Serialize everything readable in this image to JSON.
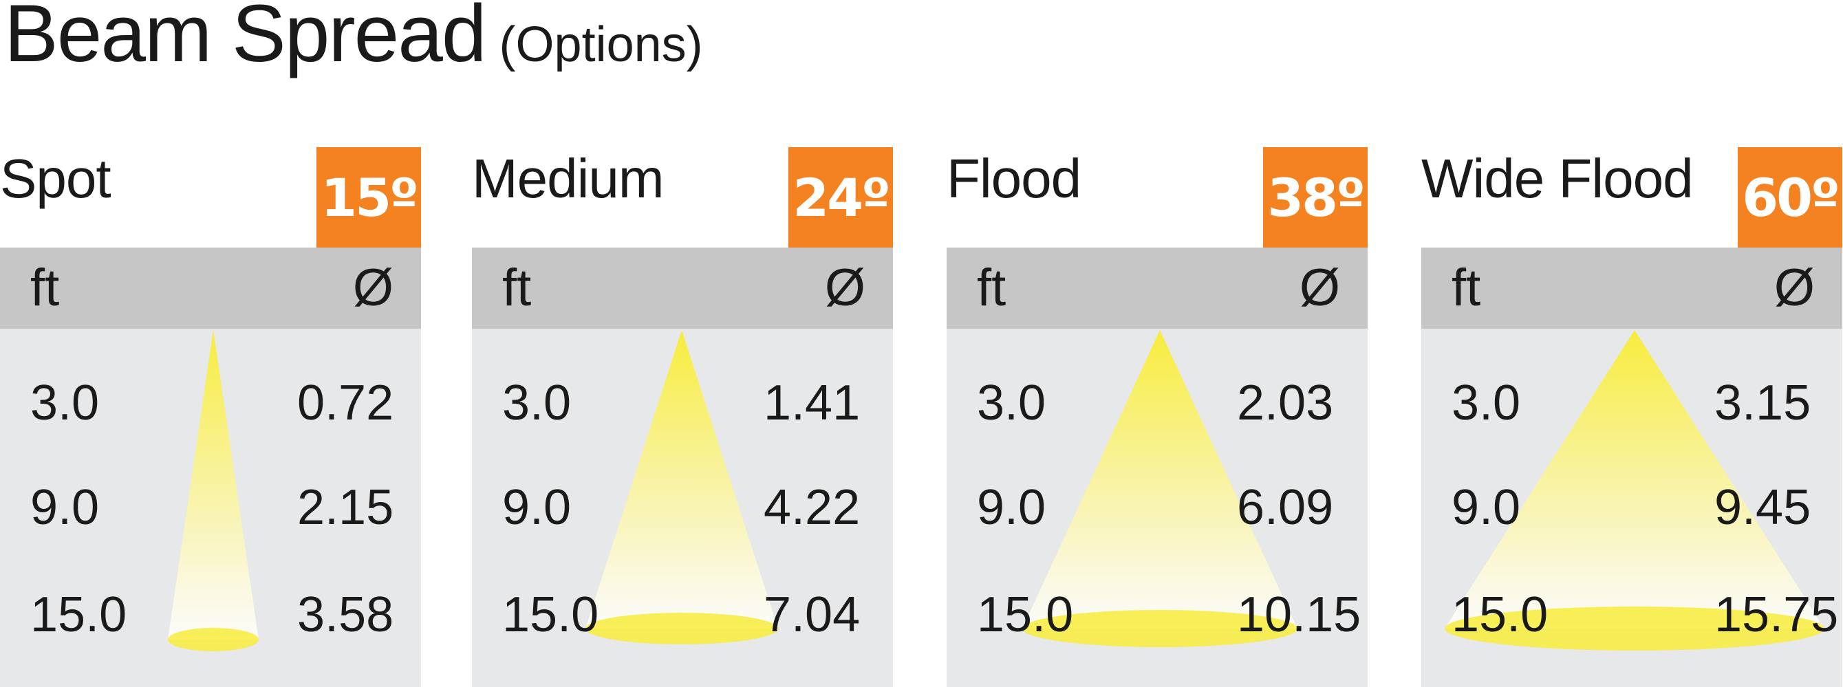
{
  "title": {
    "main": "Beam Spread",
    "sub": "(Options)"
  },
  "colors": {
    "accent": "#f58220",
    "header": "#c6c6c6",
    "body": "#e7e8e9",
    "beam": "#f7ec3c"
  },
  "columns": {
    "distance": "ft",
    "diameter": "Ø"
  },
  "panels": [
    {
      "name": "Spot",
      "angle": "15º",
      "degrees": 15,
      "rows": [
        {
          "ft": "3.0",
          "dia": "0.72"
        },
        {
          "ft": "9.0",
          "dia": "2.15"
        },
        {
          "ft": "15.0",
          "dia": "3.58"
        }
      ]
    },
    {
      "name": "Medium",
      "angle": "24º",
      "degrees": 24,
      "rows": [
        {
          "ft": "3.0",
          "dia": "1.41"
        },
        {
          "ft": "9.0",
          "dia": "4.22"
        },
        {
          "ft": "15.0",
          "dia": "7.04"
        }
      ]
    },
    {
      "name": "Flood",
      "angle": "38º",
      "degrees": 38,
      "rows": [
        {
          "ft": "3.0",
          "dia": "2.03"
        },
        {
          "ft": "9.0",
          "dia": "6.09"
        },
        {
          "ft": "15.0",
          "dia": "10.15"
        }
      ]
    },
    {
      "name": "Wide Flood",
      "angle": "60º",
      "degrees": 60,
      "rows": [
        {
          "ft": "3.0",
          "dia": "3.15"
        },
        {
          "ft": "9.0",
          "dia": "9.45"
        },
        {
          "ft": "15.0",
          "dia": "15.75"
        }
      ]
    }
  ]
}
